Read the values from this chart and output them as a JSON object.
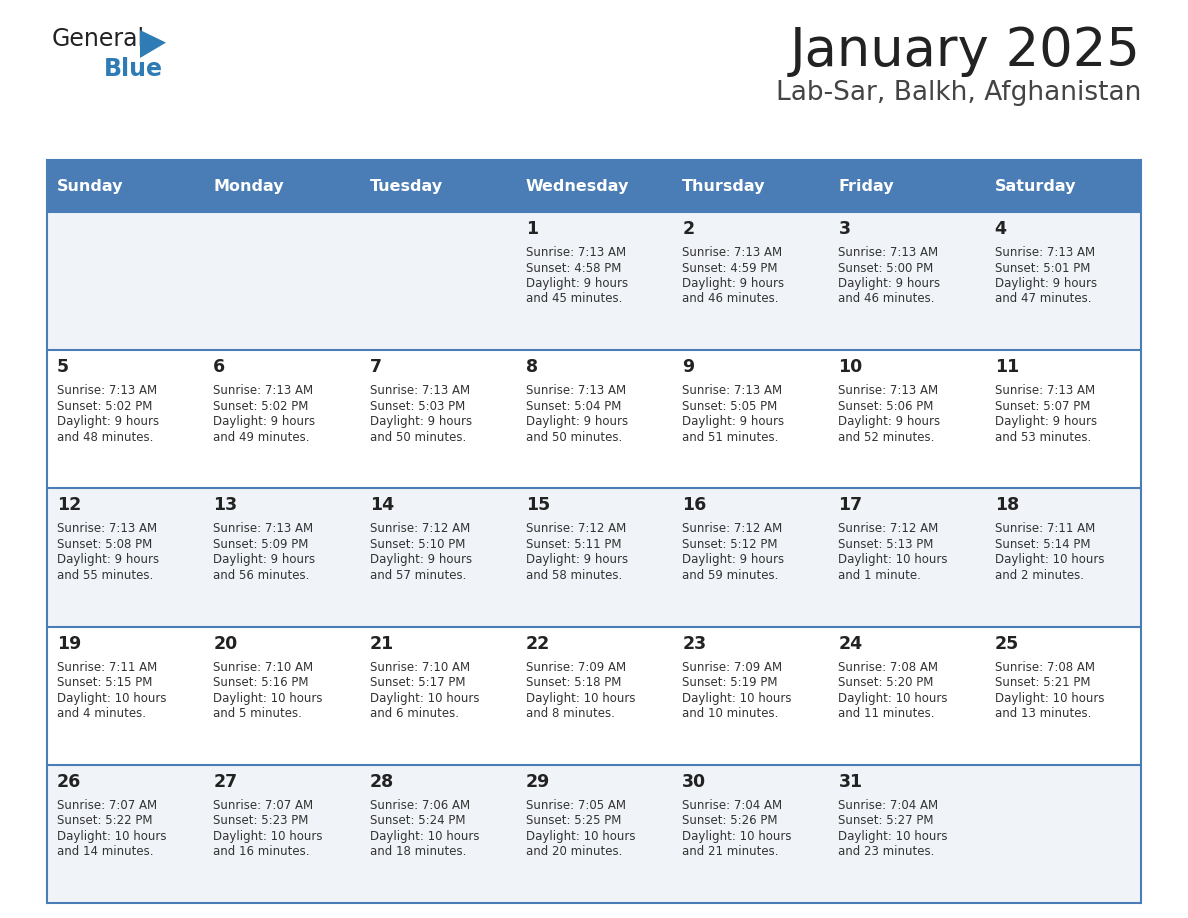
{
  "title": "January 2025",
  "subtitle": "Lab-Sar, Balkh, Afghanistan",
  "days_of_week": [
    "Sunday",
    "Monday",
    "Tuesday",
    "Wednesday",
    "Thursday",
    "Friday",
    "Saturday"
  ],
  "header_bg": "#4a7db5",
  "header_text": "#ffffff",
  "row_bg_odd": "#f0f4f8",
  "row_bg_even": "#ffffff",
  "border_color": "#4a7db5",
  "day_text_color": "#222222",
  "info_text_color": "#333333",
  "title_color": "#222222",
  "subtitle_color": "#444444",
  "logo_general_color": "#222222",
  "logo_blue_color": "#2e7bb5",
  "calendar": [
    [
      null,
      null,
      null,
      {
        "day": 1,
        "sunrise": "7:13 AM",
        "sunset": "4:58 PM",
        "daylight": "9 hours and 45 minutes."
      },
      {
        "day": 2,
        "sunrise": "7:13 AM",
        "sunset": "4:59 PM",
        "daylight": "9 hours and 46 minutes."
      },
      {
        "day": 3,
        "sunrise": "7:13 AM",
        "sunset": "5:00 PM",
        "daylight": "9 hours and 46 minutes."
      },
      {
        "day": 4,
        "sunrise": "7:13 AM",
        "sunset": "5:01 PM",
        "daylight": "9 hours and 47 minutes."
      }
    ],
    [
      {
        "day": 5,
        "sunrise": "7:13 AM",
        "sunset": "5:02 PM",
        "daylight": "9 hours and 48 minutes."
      },
      {
        "day": 6,
        "sunrise": "7:13 AM",
        "sunset": "5:02 PM",
        "daylight": "9 hours and 49 minutes."
      },
      {
        "day": 7,
        "sunrise": "7:13 AM",
        "sunset": "5:03 PM",
        "daylight": "9 hours and 50 minutes."
      },
      {
        "day": 8,
        "sunrise": "7:13 AM",
        "sunset": "5:04 PM",
        "daylight": "9 hours and 50 minutes."
      },
      {
        "day": 9,
        "sunrise": "7:13 AM",
        "sunset": "5:05 PM",
        "daylight": "9 hours and 51 minutes."
      },
      {
        "day": 10,
        "sunrise": "7:13 AM",
        "sunset": "5:06 PM",
        "daylight": "9 hours and 52 minutes."
      },
      {
        "day": 11,
        "sunrise": "7:13 AM",
        "sunset": "5:07 PM",
        "daylight": "9 hours and 53 minutes."
      }
    ],
    [
      {
        "day": 12,
        "sunrise": "7:13 AM",
        "sunset": "5:08 PM",
        "daylight": "9 hours and 55 minutes."
      },
      {
        "day": 13,
        "sunrise": "7:13 AM",
        "sunset": "5:09 PM",
        "daylight": "9 hours and 56 minutes."
      },
      {
        "day": 14,
        "sunrise": "7:12 AM",
        "sunset": "5:10 PM",
        "daylight": "9 hours and 57 minutes."
      },
      {
        "day": 15,
        "sunrise": "7:12 AM",
        "sunset": "5:11 PM",
        "daylight": "9 hours and 58 minutes."
      },
      {
        "day": 16,
        "sunrise": "7:12 AM",
        "sunset": "5:12 PM",
        "daylight": "9 hours and 59 minutes."
      },
      {
        "day": 17,
        "sunrise": "7:12 AM",
        "sunset": "5:13 PM",
        "daylight": "10 hours and 1 minute."
      },
      {
        "day": 18,
        "sunrise": "7:11 AM",
        "sunset": "5:14 PM",
        "daylight": "10 hours and 2 minutes."
      }
    ],
    [
      {
        "day": 19,
        "sunrise": "7:11 AM",
        "sunset": "5:15 PM",
        "daylight": "10 hours and 4 minutes."
      },
      {
        "day": 20,
        "sunrise": "7:10 AM",
        "sunset": "5:16 PM",
        "daylight": "10 hours and 5 minutes."
      },
      {
        "day": 21,
        "sunrise": "7:10 AM",
        "sunset": "5:17 PM",
        "daylight": "10 hours and 6 minutes."
      },
      {
        "day": 22,
        "sunrise": "7:09 AM",
        "sunset": "5:18 PM",
        "daylight": "10 hours and 8 minutes."
      },
      {
        "day": 23,
        "sunrise": "7:09 AM",
        "sunset": "5:19 PM",
        "daylight": "10 hours and 10 minutes."
      },
      {
        "day": 24,
        "sunrise": "7:08 AM",
        "sunset": "5:20 PM",
        "daylight": "10 hours and 11 minutes."
      },
      {
        "day": 25,
        "sunrise": "7:08 AM",
        "sunset": "5:21 PM",
        "daylight": "10 hours and 13 minutes."
      }
    ],
    [
      {
        "day": 26,
        "sunrise": "7:07 AM",
        "sunset": "5:22 PM",
        "daylight": "10 hours and 14 minutes."
      },
      {
        "day": 27,
        "sunrise": "7:07 AM",
        "sunset": "5:23 PM",
        "daylight": "10 hours and 16 minutes."
      },
      {
        "day": 28,
        "sunrise": "7:06 AM",
        "sunset": "5:24 PM",
        "daylight": "10 hours and 18 minutes."
      },
      {
        "day": 29,
        "sunrise": "7:05 AM",
        "sunset": "5:25 PM",
        "daylight": "10 hours and 20 minutes."
      },
      {
        "day": 30,
        "sunrise": "7:04 AM",
        "sunset": "5:26 PM",
        "daylight": "10 hours and 21 minutes."
      },
      {
        "day": 31,
        "sunrise": "7:04 AM",
        "sunset": "5:27 PM",
        "daylight": "10 hours and 23 minutes."
      },
      null
    ]
  ]
}
